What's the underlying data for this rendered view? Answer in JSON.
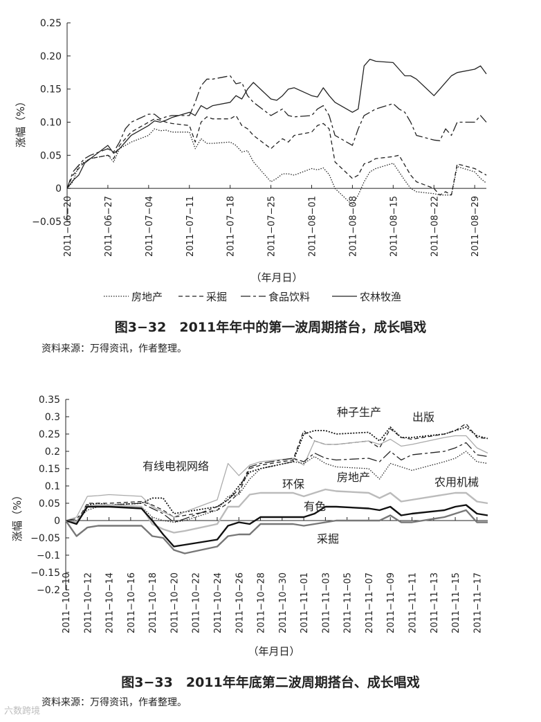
{
  "figures": [
    {
      "caption": "图3−32　2011年年中的第一波周期搭台，成长唱戏",
      "source": "资料来源：万得资讯，作者整理。"
    },
    {
      "caption": "图3−33　2011年年底第二波周期搭台、成长唱戏",
      "source": "资料来源：万得资讯，作者整理。"
    }
  ],
  "watermark": "六数跨境",
  "chart_data": [
    {
      "type": "line",
      "ylabel": "涨幅（%）",
      "xlabel": "（年月日）",
      "ylim": [
        -0.05,
        0.25
      ],
      "yticks": [
        "0.25",
        "0.20",
        "0.15",
        "0.10",
        "0.05",
        "0",
        "−0.05"
      ],
      "ytick_values": [
        0.25,
        0.2,
        0.15,
        0.1,
        0.05,
        0,
        -0.05
      ],
      "x": [
        "2011-06-20",
        "2011-06-21",
        "2011-06-22",
        "2011-06-23",
        "2011-06-24",
        "2011-06-27",
        "2011-06-28",
        "2011-06-29",
        "2011-06-30",
        "2011-07-01",
        "2011-07-04",
        "2011-07-05",
        "2011-07-06",
        "2011-07-07",
        "2011-07-08",
        "2011-07-11",
        "2011-07-12",
        "2011-07-13",
        "2011-07-14",
        "2011-07-15",
        "2011-07-18",
        "2011-07-19",
        "2011-07-20",
        "2011-07-21",
        "2011-07-22",
        "2011-07-25",
        "2011-07-26",
        "2011-07-27",
        "2011-07-28",
        "2011-07-29",
        "2011-08-01",
        "2011-08-02",
        "2011-08-03",
        "2011-08-04",
        "2011-08-05",
        "2011-08-08",
        "2011-08-09",
        "2011-08-10",
        "2011-08-11",
        "2011-08-12",
        "2011-08-15",
        "2011-08-16",
        "2011-08-17",
        "2011-08-18",
        "2011-08-19",
        "2011-08-22",
        "2011-08-23",
        "2011-08-24",
        "2011-08-25",
        "2011-08-26",
        "2011-08-29",
        "2011-08-30",
        "2011-08-31"
      ],
      "xticks": [
        "2011−06−20",
        "2011−06−27",
        "2011−07−04",
        "2011−07−11",
        "2011−07−18",
        "2011−07−25",
        "2011−08−01",
        "2011−08−08",
        "2011−08−15",
        "2011−08−22",
        "2011−08−29"
      ],
      "xtick_dates": [
        "2011-06-20",
        "2011-06-27",
        "2011-07-04",
        "2011-07-11",
        "2011-07-18",
        "2011-07-25",
        "2011-08-01",
        "2011-08-08",
        "2011-08-15",
        "2011-08-22",
        "2011-08-29"
      ],
      "legend_placement": "bottom",
      "series": [
        {
          "name": "房地产",
          "style": "dotted",
          "color": "#222222",
          "values": [
            0,
            0.01,
            0.035,
            0.04,
            0.045,
            0.05,
            0.04,
            0.06,
            0.065,
            0.07,
            0.08,
            0.09,
            0.087,
            0.088,
            0.085,
            0.085,
            0.06,
            0.075,
            0.068,
            0.068,
            0.07,
            0.065,
            0.055,
            0.057,
            0.04,
            0.01,
            0.015,
            0.022,
            0.022,
            0.02,
            0.03,
            0.028,
            0.031,
            0.021,
            0,
            -0.025,
            -0.01,
            0.01,
            0.025,
            0.03,
            0.038,
            0.025,
            0.012,
            0,
            -0.005,
            -0.008,
            -0.01,
            -0.01,
            -0.01,
            0.033,
            0.025,
            0.015,
            0.008
          ]
        },
        {
          "name": "采掘",
          "style": "dashed",
          "color": "#222222",
          "values": [
            0,
            0.02,
            0.03,
            0.04,
            0.045,
            0.05,
            0.045,
            0.065,
            0.075,
            0.085,
            0.1,
            0.105,
            0.103,
            0.1,
            0.098,
            0.095,
            0.07,
            0.1,
            0.108,
            0.105,
            0.105,
            0.11,
            0.095,
            0.09,
            0.08,
            0.06,
            0.068,
            0.075,
            0.07,
            0.08,
            0.085,
            0.095,
            0.098,
            0.09,
            0.04,
            0.015,
            0.02,
            0.037,
            0.04,
            0.045,
            0.048,
            0.05,
            0.035,
            0.02,
            0.01,
            0,
            -0.01,
            -0.005,
            -0.01,
            0.037,
            0.03,
            0.025,
            0.02
          ]
        },
        {
          "name": "食品饮料",
          "style": "longdash",
          "color": "#222222",
          "values": [
            0,
            0.025,
            0.035,
            0.045,
            0.05,
            0.06,
            0.055,
            0.07,
            0.09,
            0.1,
            0.112,
            0.112,
            0.105,
            0.108,
            0.11,
            0.11,
            0.13,
            0.155,
            0.165,
            0.165,
            0.17,
            0.158,
            0.16,
            0.14,
            0.13,
            0.11,
            0.115,
            0.12,
            0.11,
            0.108,
            0.11,
            0.12,
            0.125,
            0.11,
            0.08,
            0.065,
            0.09,
            0.11,
            0.115,
            0.12,
            0.128,
            0.12,
            0.115,
            0.1,
            0.08,
            0.073,
            0.072,
            0.09,
            0.08,
            0.1,
            0.1,
            0.11,
            0.1
          ]
        },
        {
          "name": "农林牧渔",
          "style": "solid",
          "color": "#222222",
          "values": [
            0,
            0.012,
            0.02,
            0.038,
            0.045,
            0.065,
            0.053,
            0.06,
            0.07,
            0.08,
            0.095,
            0.102,
            0.1,
            0.103,
            0.107,
            0.115,
            0.11,
            0.125,
            0.12,
            0.125,
            0.13,
            0.14,
            0.135,
            0.15,
            0.16,
            0.135,
            0.133,
            0.14,
            0.15,
            0.152,
            0.14,
            0.138,
            0.152,
            0.14,
            0.13,
            0.115,
            0.12,
            0.185,
            0.195,
            0.192,
            0.19,
            0.18,
            0.17,
            0.17,
            0.165,
            0.14,
            0.15,
            0.16,
            0.17,
            0.175,
            0.18,
            0.185,
            0.173
          ]
        }
      ]
    },
    {
      "type": "line",
      "ylabel": "涨幅（%）",
      "xlabel": "（年月日）",
      "ylim": [
        -0.2,
        0.35
      ],
      "yticks": [
        "0.35",
        "0.3",
        "0.25",
        "0.2",
        "0.15",
        "0.1",
        "0.05",
        "0",
        "−0.05",
        "−0.1",
        "−0.15",
        "−0.2"
      ],
      "ytick_values": [
        0.35,
        0.3,
        0.25,
        0.2,
        0.15,
        0.1,
        0.05,
        0,
        -0.05,
        -0.1,
        -0.15,
        -0.2
      ],
      "x": [
        "2011-10-10",
        "2011-10-11",
        "2011-10-12",
        "2011-10-13",
        "2011-10-14",
        "2011-10-17",
        "2011-10-18",
        "2011-10-19",
        "2011-10-20",
        "2011-10-21",
        "2011-10-24",
        "2011-10-25",
        "2011-10-26",
        "2011-10-27",
        "2011-10-28",
        "2011-10-31",
        "2011-11-01",
        "2011-11-02",
        "2011-11-03",
        "2011-11-04",
        "2011-11-07",
        "2011-11-08",
        "2011-11-09",
        "2011-11-10",
        "2011-11-11",
        "2011-11-14",
        "2011-11-15",
        "2011-11-16",
        "2011-11-17",
        "2011-11-18"
      ],
      "xticks": [
        "2011−10−10",
        "2011−10−12",
        "2011−10−14",
        "2011−10−16",
        "2011−10−18",
        "2011−10−20",
        "2011−10−22",
        "2011−10−24",
        "2011−10−26",
        "2011−10−28",
        "2011−10−30",
        "2011−11−01",
        "2011−11−03",
        "2011−11−05",
        "2011−11−07",
        "2011−11−09",
        "2011−11−11",
        "2011−11−13",
        "2011−11−15",
        "2011−11−17"
      ],
      "xtick_dates": [
        "2011-10-10",
        "2011-10-12",
        "2011-10-14",
        "2011-10-16",
        "2011-10-18",
        "2011-10-20",
        "2011-10-22",
        "2011-10-24",
        "2011-10-26",
        "2011-10-28",
        "2011-10-30",
        "2011-11-01",
        "2011-11-03",
        "2011-11-05",
        "2011-11-07",
        "2011-11-09",
        "2011-11-11",
        "2011-11-13",
        "2011-11-15",
        "2011-11-17"
      ],
      "series": [
        {
          "name": "种子生产",
          "style": "dotted-bold",
          "color": "#111111",
          "values": [
            0,
            -0.01,
            0.045,
            0.05,
            0.045,
            0.05,
            0.065,
            0.065,
            0.02,
            0.025,
            0.04,
            0.06,
            0.1,
            0.14,
            0.15,
            0.17,
            0.25,
            0.26,
            0.26,
            0.25,
            0.255,
            0.23,
            0.27,
            0.24,
            0.24,
            0.25,
            0.26,
            0.27,
            0.245,
            0.237
          ]
        },
        {
          "name": "出版",
          "style": "dashed",
          "color": "#222222",
          "values": [
            0,
            -0.005,
            0.05,
            0.05,
            0.05,
            0.055,
            0.045,
            0.03,
            0.01,
            0.015,
            0.03,
            0.05,
            0.08,
            0.15,
            0.16,
            0.175,
            0.26,
            0.23,
            0.22,
            0.22,
            0.23,
            0.21,
            0.265,
            0.24,
            0.235,
            0.25,
            0.26,
            0.28,
            0.24,
            0.237
          ]
        },
        {
          "name": "有线电视网络",
          "style": "solid",
          "color": "#aaaaaa",
          "values": [
            0,
            0.01,
            0.07,
            0.072,
            0.075,
            0.07,
            0.04,
            0.025,
            0.01,
            0.025,
            0.06,
            0.165,
            0.13,
            0.16,
            0.17,
            0.18,
            0.16,
            0.23,
            0.22,
            0.22,
            0.23,
            0.22,
            0.235,
            0.215,
            0.22,
            0.24,
            0.245,
            0.245,
            0.21,
            0.195
          ]
        },
        {
          "name": "环保",
          "style": "longdash",
          "color": "#222222",
          "values": [
            0,
            0.005,
            0.04,
            0.045,
            0.045,
            0.05,
            0.035,
            0.02,
            -0.005,
            0.005,
            0.04,
            0.06,
            0.09,
            0.155,
            0.165,
            0.18,
            0.17,
            0.195,
            0.18,
            0.175,
            0.18,
            0.17,
            0.2,
            0.175,
            0.19,
            0.2,
            0.21,
            0.225,
            0.19,
            0.185
          ]
        },
        {
          "name": "农用机械",
          "style": "dotted",
          "color": "#222222",
          "values": [
            0,
            0.0,
            0.03,
            0.04,
            0.04,
            0.04,
            0.01,
            0.0,
            -0.005,
            0.0,
            0.03,
            0.07,
            0.075,
            0.12,
            0.15,
            0.17,
            0.165,
            0.185,
            0.165,
            0.155,
            0.15,
            0.12,
            0.165,
            0.155,
            0.145,
            0.17,
            0.18,
            0.2,
            0.17,
            0.165
          ]
        },
        {
          "name": "房地产",
          "style": "solid-bold",
          "color": "#bbbbbb",
          "values": [
            0,
            -0.005,
            0.04,
            0.045,
            0.045,
            0.04,
            -0.01,
            -0.025,
            -0.035,
            -0.03,
            -0.01,
            0.04,
            0.04,
            0.075,
            0.08,
            0.08,
            0.07,
            0.08,
            0.09,
            0.085,
            0.08,
            0.065,
            0.08,
            0.055,
            0.06,
            0.075,
            0.08,
            0.08,
            0.055,
            0.05
          ]
        },
        {
          "name": "有色",
          "style": "solid-bold",
          "color": "#111111",
          "values": [
            0,
            -0.01,
            0.04,
            0.04,
            0.04,
            0.035,
            0.0,
            -0.04,
            -0.075,
            -0.07,
            -0.055,
            -0.015,
            -0.005,
            -0.01,
            0.01,
            0.01,
            0.01,
            0.02,
            0.04,
            0.04,
            0.035,
            0.03,
            0.04,
            0.015,
            0.02,
            0.03,
            0.04,
            0.045,
            0.02,
            0.015
          ]
        },
        {
          "name": "采掘",
          "style": "solid-bold",
          "color": "#777777",
          "values": [
            0,
            -0.045,
            -0.02,
            -0.015,
            -0.015,
            -0.015,
            -0.045,
            -0.05,
            -0.085,
            -0.095,
            -0.075,
            -0.045,
            -0.04,
            -0.04,
            -0.01,
            -0.01,
            -0.015,
            -0.01,
            -0.005,
            0.0,
            0.0,
            0.0,
            0.015,
            -0.005,
            -0.005,
            0.01,
            0.02,
            0.03,
            -0.005,
            -0.005
          ]
        }
      ]
    }
  ]
}
